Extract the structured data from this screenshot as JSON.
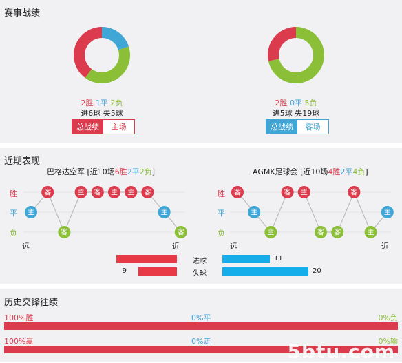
{
  "section1": {
    "title": "赛事战绩",
    "left": {
      "win_label": "2胜",
      "draw_label": "1平",
      "loss_label": "2负",
      "goals_for": "进6球",
      "goals_against": "失5球",
      "tab_overall": "总战绩",
      "tab_venue": "主场",
      "chart": {
        "wins": 2,
        "draws": 1,
        "losses": 2
      }
    },
    "right": {
      "win_label": "2胜",
      "draw_label": "0平",
      "loss_label": "5负",
      "goals_for": "进5球",
      "goals_against": "失19球",
      "tab_overall": "总战绩",
      "tab_venue": "客场",
      "chart": {
        "wins": 2,
        "draws": 0,
        "losses": 5
      }
    },
    "colors": {
      "win": "#dc3b4d",
      "draw": "#3fa6d6",
      "loss": "#8bbf38"
    }
  },
  "section2": {
    "title": "近期表现",
    "left": {
      "team": "巴格达空军",
      "summary_pre": "[近10场",
      "wins": "6胜",
      "draws": "2平",
      "losses": "2负",
      "summary_post": "]",
      "matches": [
        {
          "result": "D",
          "venue": "主"
        },
        {
          "result": "W",
          "venue": "客"
        },
        {
          "result": "L",
          "venue": "客"
        },
        {
          "result": "W",
          "venue": "主"
        },
        {
          "result": "W",
          "venue": "客"
        },
        {
          "result": "W",
          "venue": "主"
        },
        {
          "result": "W",
          "venue": "主"
        },
        {
          "result": "W",
          "venue": "客"
        },
        {
          "result": "D",
          "venue": "主"
        },
        {
          "result": "L",
          "venue": "客"
        }
      ]
    },
    "right": {
      "team": "AGMK足球会",
      "summary_pre": "[近10场",
      "wins": "4胜",
      "draws": "2平",
      "losses": "4负",
      "summary_post": "]",
      "matches": [
        {
          "result": "W",
          "venue": "客"
        },
        {
          "result": "D",
          "venue": "主"
        },
        {
          "result": "L",
          "venue": "主"
        },
        {
          "result": "W",
          "venue": "客"
        },
        {
          "result": "W",
          "venue": "主"
        },
        {
          "result": "L",
          "venue": "客"
        },
        {
          "result": "L",
          "venue": "客"
        },
        {
          "result": "W",
          "venue": "客"
        },
        {
          "result": "L",
          "venue": "主"
        },
        {
          "result": "D",
          "venue": "主"
        }
      ]
    },
    "row_labels": {
      "win": "胜",
      "draw": "平",
      "loss": "负"
    },
    "axis": {
      "far": "远",
      "near": "近"
    },
    "goals": {
      "scored_label": "进球",
      "conceded_label": "失球",
      "left_scored": 14,
      "left_conceded": 9,
      "right_scored": 11,
      "right_conceded": 20,
      "left_color": "#e83a46",
      "right_color": "#15aeea"
    }
  },
  "section3": {
    "title": "历史交锋往绩",
    "row1": {
      "left": "100%胜",
      "mid": "0%平",
      "right": "0%负",
      "value": 100
    },
    "row2": {
      "left": "100%赢",
      "mid": "0%走",
      "right": "0%输",
      "value": 100
    }
  },
  "watermark": "5btu.com"
}
